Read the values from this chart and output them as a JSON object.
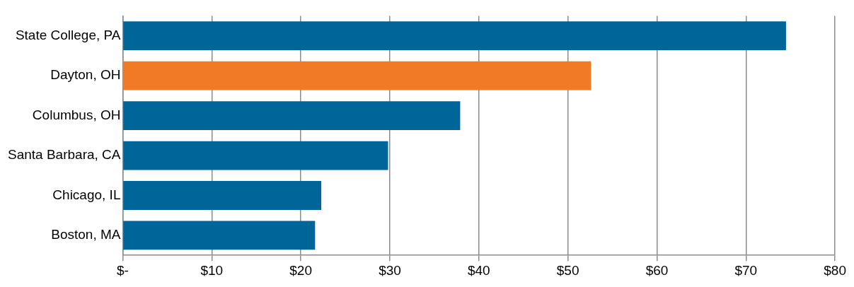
{
  "chart_data": {
    "type": "bar",
    "orientation": "horizontal",
    "categories": [
      "State College, PA",
      "Dayton, OH",
      "Columbus, OH",
      "Santa Barbara, CA",
      "Chicago, IL",
      "Boston, MA"
    ],
    "values": [
      74.5,
      52.6,
      37.9,
      29.8,
      22.3,
      21.6
    ],
    "colors": [
      "#006699",
      "#f07a25",
      "#006699",
      "#006699",
      "#006699",
      "#006699"
    ],
    "xlim": [
      0,
      80
    ],
    "xticks": [
      {
        "value": 0,
        "label": "$-"
      },
      {
        "value": 10,
        "label": "$10"
      },
      {
        "value": 20,
        "label": "$20"
      },
      {
        "value": 30,
        "label": "$30"
      },
      {
        "value": 40,
        "label": "$40"
      },
      {
        "value": 50,
        "label": "$50"
      },
      {
        "value": 60,
        "label": "$60"
      },
      {
        "value": 70,
        "label": "$70"
      },
      {
        "value": 80,
        "label": "$80"
      }
    ],
    "grid": "x",
    "legend": false
  }
}
